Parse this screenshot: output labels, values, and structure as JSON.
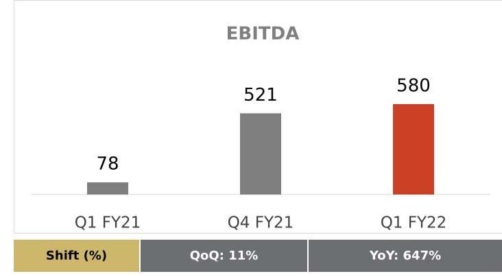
{
  "chart_data": {
    "type": "bar",
    "title": "EBITDA",
    "categories": [
      "Q1 FY21",
      "Q4 FY21",
      "Q1 FY22"
    ],
    "values": [
      78,
      521,
      580
    ],
    "colors": [
      "#7f7f7f",
      "#7f7f7f",
      "#cc4125"
    ]
  },
  "footer": {
    "label": "Shift (%)",
    "cells": [
      "QoQ: 11%",
      "YoY: 647%"
    ]
  }
}
